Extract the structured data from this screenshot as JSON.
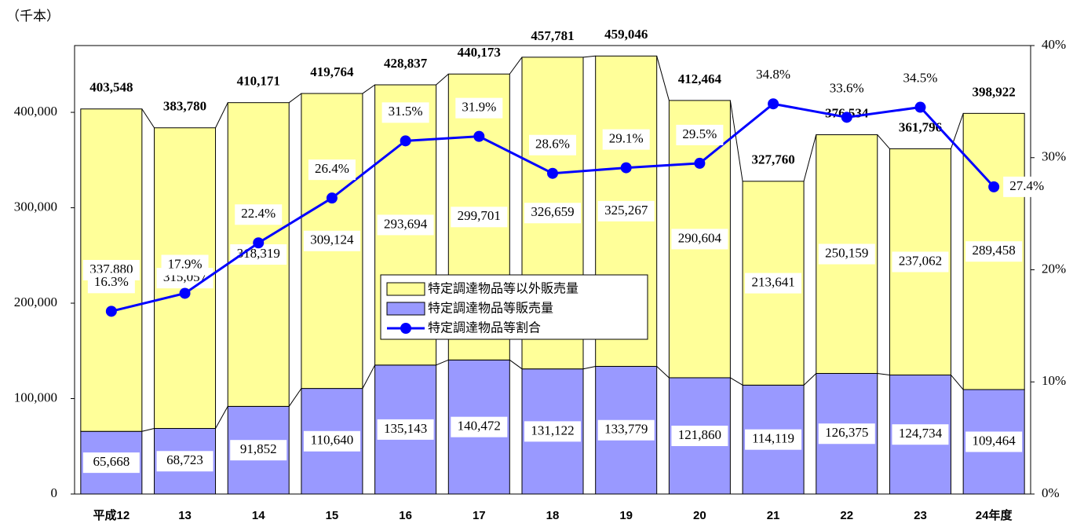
{
  "chart_data": {
    "type": "bar",
    "stacked": true,
    "unit_label": "（千本）",
    "categories": [
      "平成12",
      "13",
      "14",
      "15",
      "16",
      "17",
      "18",
      "19",
      "20",
      "21",
      "22",
      "23",
      "24年度"
    ],
    "series": [
      {
        "name": "特定調達物品等販売量",
        "color": "#9999ff",
        "values": [
          65668,
          68723,
          91852,
          110640,
          135143,
          140472,
          131122,
          133779,
          121860,
          114119,
          126375,
          124734,
          109464
        ],
        "value_labels": [
          "65,668",
          "68,723",
          "91,852",
          "110,640",
          "135,143",
          "140,472",
          "131,122",
          "133,779",
          "121,860",
          "114,119",
          "126,375",
          "124,734",
          "109,464"
        ]
      },
      {
        "name": "特定調達物品等以外販売量",
        "color": "#ffff99",
        "values": [
          337880,
          315057,
          318319,
          309124,
          293694,
          299701,
          326659,
          325267,
          290604,
          213641,
          250159,
          237062,
          289458
        ],
        "value_labels": [
          "337,880",
          "315,057",
          "318,319",
          "309,124",
          "293,694",
          "299,701",
          "326,659",
          "325,267",
          "290,604",
          "213,641",
          "250,159",
          "237,062",
          "289,458"
        ]
      },
      {
        "name": "特定調達物品等割合",
        "type": "line",
        "axis": "y2",
        "color": "#0000ff",
        "values": [
          16.3,
          17.9,
          22.4,
          26.4,
          31.5,
          31.9,
          28.6,
          29.1,
          29.5,
          34.8,
          33.6,
          34.5,
          27.4
        ],
        "value_labels": [
          "16.3%",
          "17.9%",
          "22.4%",
          "26.4%",
          "31.5%",
          "31.9%",
          "28.6%",
          "29.1%",
          "29.5%",
          "34.8%",
          "33.6%",
          "34.5%",
          "27.4%"
        ]
      }
    ],
    "totals": [
      403548,
      383780,
      410171,
      419764,
      428837,
      440173,
      457781,
      459046,
      412464,
      327760,
      376534,
      361796,
      398922
    ],
    "total_labels": [
      "403,548",
      "383,780",
      "410,171",
      "419,764",
      "428,837",
      "440,173",
      "457,781",
      "459,046",
      "412,464",
      "327,760",
      "376,534",
      "361,796",
      "398,922"
    ],
    "ylim": [
      0,
      470000
    ],
    "yticks": [
      0,
      {
        "value": 100000,
        "label": "100,000"
      },
      {
        "value": 200000,
        "label": "200,000"
      },
      {
        "value": 300000,
        "label": "300,000"
      },
      {
        "value": 400000,
        "label": "400,000"
      }
    ],
    "y2lim": [
      0,
      40
    ],
    "y2ticks": [
      {
        "value": 0,
        "label": "0%"
      },
      {
        "value": 10,
        "label": "10%"
      },
      {
        "value": 20,
        "label": "20%"
      },
      {
        "value": 30,
        "label": "30%"
      },
      {
        "value": 40,
        "label": "40%"
      }
    ],
    "legend": "center"
  }
}
